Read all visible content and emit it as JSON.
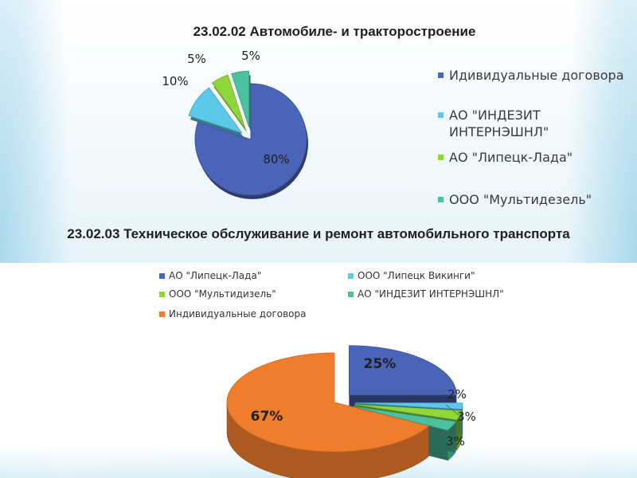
{
  "slide": {
    "title_1": "23.02.02 Автомобиле- и тракторостроение",
    "title_2": "23.02.03 Техническое обслуживание и ремонт автомобильного транспорта"
  },
  "chart_data": [
    {
      "type": "pie",
      "title": "23.02.02 Автомобиле- и тракторостроение",
      "categories": [
        "Идивидуальные договора",
        "АО \"ИНДЕЗИТ ИНТЕРНЭШНЛ\"",
        "АО \"Липецк-Лада\"",
        "ООО \"Мультидезель\""
      ],
      "values": [
        80,
        10,
        5,
        5
      ],
      "labels": [
        "80%",
        "10%",
        "5%",
        "5%"
      ],
      "colors": [
        "#4a64b8",
        "#5cc8ea",
        "#8ed63a",
        "#4cc1a0"
      ],
      "legend": "right"
    },
    {
      "type": "pie",
      "title": "23.02.03 Техническое обслуживание и ремонт автомобильного транспорта",
      "categories": [
        "АО \"Липецк-Лада\"",
        "ООО \"Липецк Викинги\"",
        "ООО \"Мультидизель\"",
        "АО \"ИНДЕЗИТ ИНТЕРНЭШНЛ\"",
        "Индивидуальные договора"
      ],
      "values": [
        25,
        2,
        3,
        3,
        67
      ],
      "labels": [
        "25%",
        "2%",
        "3%",
        "3%",
        "67%"
      ],
      "colors": [
        "#4a64b8",
        "#5cc8ea",
        "#8ed63a",
        "#4cc1a0",
        "#f07d2c"
      ],
      "legend": "top"
    }
  ]
}
